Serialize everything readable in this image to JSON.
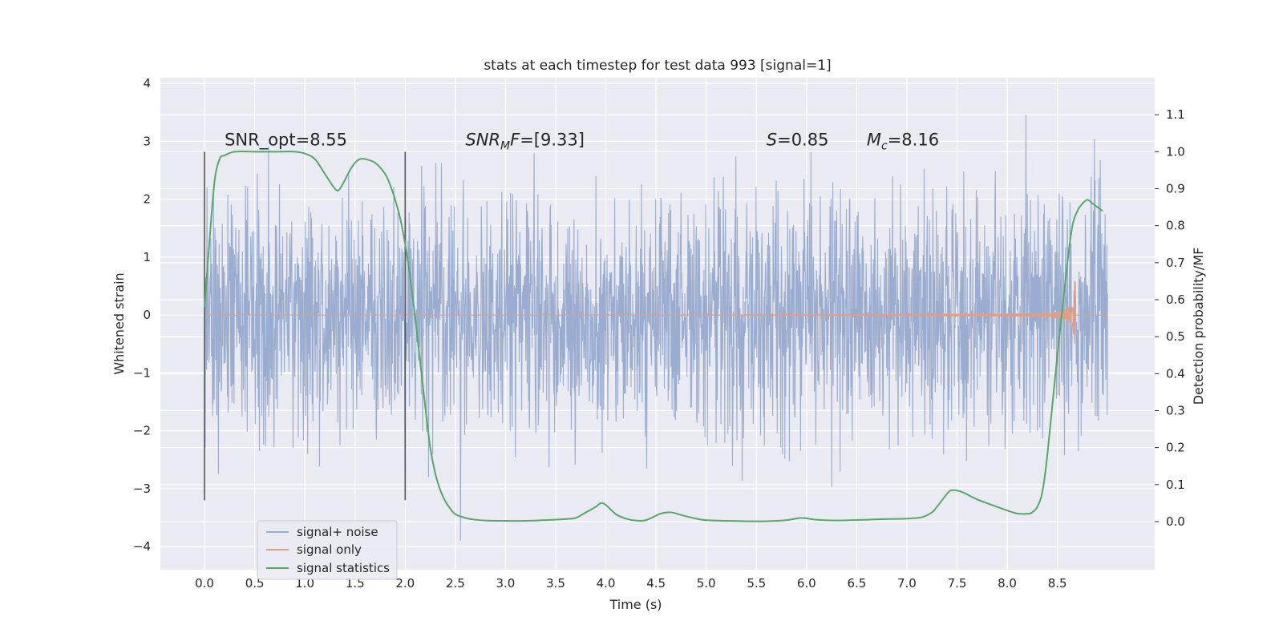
{
  "chart_data": {
    "type": "line",
    "title": "stats at each timestep for test data 993 [signal=1]",
    "xlabel": "Time (s)",
    "ylabel_left": "Whitened strain",
    "ylabel_right": "Detection probability/MF",
    "xlim": [
      -0.44,
      9.47
    ],
    "ylim_left": [
      -4.4,
      4.1
    ],
    "ylim_right": [
      -0.13,
      1.2
    ],
    "x_ticks": [
      0.0,
      0.5,
      1.0,
      1.5,
      2.0,
      2.5,
      3.0,
      3.5,
      4.0,
      4.5,
      5.0,
      5.5,
      6.0,
      6.5,
      7.0,
      7.5,
      8.0,
      8.5
    ],
    "x_tick_labels": [
      "0.0",
      "0.5",
      "1.0",
      "1.5",
      "2.0",
      "2.5",
      "3.0",
      "3.5",
      "4.0",
      "4.5",
      "5.0",
      "5.5",
      "6.0",
      "6.5",
      "7.0",
      "7.5",
      "8.0",
      "8.5"
    ],
    "y_left_ticks": [
      4,
      3,
      2,
      1,
      0,
      -1,
      -2,
      -3,
      -4
    ],
    "y_left_tick_labels": [
      "4",
      "3",
      "2",
      "1",
      "0",
      "−1",
      "−2",
      "−3",
      "−4"
    ],
    "y_right_ticks": [
      1.1,
      1.0,
      0.9,
      0.8,
      0.7,
      0.6,
      0.5,
      0.4,
      0.3,
      0.2,
      0.1,
      0.0
    ],
    "y_right_tick_labels": [
      "1.1",
      "1.0",
      "0.9",
      "0.8",
      "0.7",
      "0.6",
      "0.5",
      "0.4",
      "0.3",
      "0.2",
      "0.1",
      "0.0"
    ],
    "grid": true,
    "legend_position": "lower-left",
    "colors": {
      "background": "#eaeaf2",
      "grid": "#ffffff",
      "noise": "#9aaccf",
      "signal": "#dd9f86",
      "stats": "#55a868",
      "vline": "#555555"
    },
    "series": [
      {
        "name": "signal+ noise",
        "kind": "noise",
        "x_range": [
          0.0,
          9.0
        ],
        "amplitude_range": [
          -4.0,
          3.65
        ]
      },
      {
        "name": "signal only",
        "kind": "chirp",
        "x_range": [
          0.0,
          8.68
        ],
        "peak_amplitude": 1.0
      },
      {
        "name": "signal statistics",
        "kind": "probability",
        "axis": "right",
        "x": [
          0.0,
          0.05,
          0.1,
          0.15,
          0.2,
          0.3,
          0.5,
          0.7,
          0.9,
          1.0,
          1.1,
          1.2,
          1.3,
          1.35,
          1.45,
          1.5,
          1.55,
          1.6,
          1.7,
          1.8,
          1.85,
          1.9,
          1.95,
          2.0,
          2.05,
          2.1,
          2.15,
          2.2,
          2.25,
          2.3,
          2.35,
          2.4,
          2.45,
          2.5,
          2.6,
          2.7,
          2.8,
          3.0,
          3.2,
          3.4,
          3.6,
          3.7,
          3.8,
          3.9,
          3.95,
          4.0,
          4.1,
          4.2,
          4.3,
          4.4,
          4.55,
          4.65,
          4.75,
          4.9,
          5.0,
          5.2,
          5.4,
          5.6,
          5.8,
          5.95,
          6.1,
          6.3,
          6.6,
          6.8,
          7.0,
          7.15,
          7.25,
          7.3,
          7.4,
          7.45,
          7.55,
          7.7,
          7.9,
          8.0,
          8.1,
          8.2,
          8.25,
          8.3,
          8.35,
          8.4,
          8.5,
          8.6,
          8.65,
          8.7,
          8.75,
          8.8,
          8.85,
          8.9,
          8.95
        ],
        "y": [
          0.58,
          0.76,
          0.92,
          0.98,
          0.99,
          1.0,
          1.0,
          1.0,
          1.0,
          0.995,
          0.98,
          0.94,
          0.9,
          0.9,
          0.95,
          0.97,
          0.98,
          0.98,
          0.97,
          0.94,
          0.91,
          0.87,
          0.82,
          0.75,
          0.66,
          0.55,
          0.43,
          0.31,
          0.2,
          0.13,
          0.085,
          0.055,
          0.035,
          0.02,
          0.01,
          0.005,
          0.003,
          0.002,
          0.002,
          0.004,
          0.007,
          0.01,
          0.025,
          0.04,
          0.05,
          0.045,
          0.02,
          0.008,
          0.003,
          0.004,
          0.022,
          0.025,
          0.018,
          0.008,
          0.004,
          0.002,
          0.001,
          0.001,
          0.004,
          0.01,
          0.005,
          0.003,
          0.005,
          0.007,
          0.008,
          0.012,
          0.025,
          0.04,
          0.075,
          0.085,
          0.08,
          0.06,
          0.04,
          0.03,
          0.022,
          0.021,
          0.025,
          0.04,
          0.08,
          0.18,
          0.45,
          0.7,
          0.8,
          0.84,
          0.86,
          0.87,
          0.86,
          0.85,
          0.84
        ]
      }
    ],
    "vertical_lines": [
      0.0,
      2.0
    ],
    "annotations": [
      {
        "text": "SNR_opt=8.55",
        "x": 0.2,
        "y": 2.93
      },
      {
        "text": "SNR",
        "sub": "M",
        "tail": "F=[9.33]",
        "x": 2.6,
        "y": 2.93
      },
      {
        "text": "S",
        "tail": "=0.85",
        "x": 5.6,
        "y": 2.93
      },
      {
        "text": "M",
        "sub": "c",
        "tail": "=8.16",
        "x": 6.6,
        "y": 2.93
      }
    ]
  }
}
